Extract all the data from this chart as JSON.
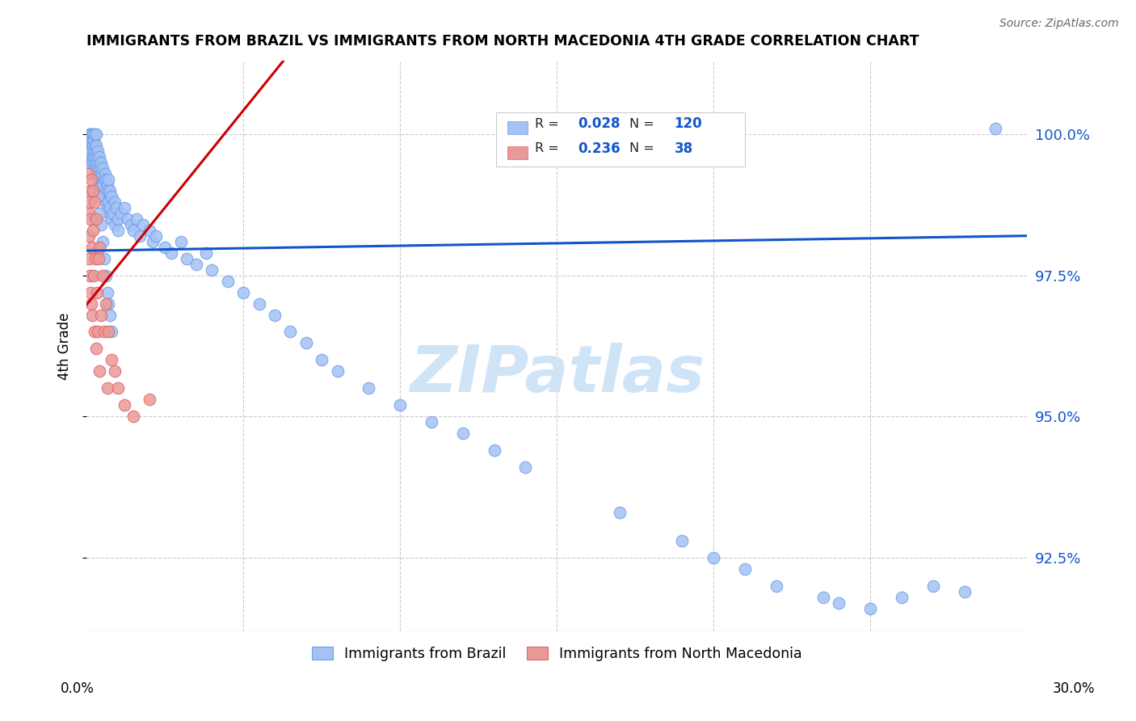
{
  "title": "IMMIGRANTS FROM BRAZIL VS IMMIGRANTS FROM NORTH MACEDONIA 4TH GRADE CORRELATION CHART",
  "source": "Source: ZipAtlas.com",
  "ylabel": "4th Grade",
  "ytick_labels": [
    "92.5%",
    "95.0%",
    "97.5%",
    "100.0%"
  ],
  "ytick_values": [
    92.5,
    95.0,
    97.5,
    100.0
  ],
  "xlim": [
    0.0,
    30.0
  ],
  "ylim": [
    91.2,
    101.3
  ],
  "brazil_R": 0.028,
  "brazil_N": 120,
  "macedonia_R": 0.236,
  "macedonia_N": 38,
  "brazil_color": "#a4c2f4",
  "brazil_edge_color": "#6d9eeb",
  "macedonia_color": "#ea9999",
  "macedonia_edge_color": "#e06666",
  "brazil_line_color": "#1155cc",
  "macedonia_line_color": "#cc0000",
  "watermark_color": "#d0e4f7",
  "brazil_x": [
    0.05,
    0.07,
    0.08,
    0.09,
    0.1,
    0.1,
    0.12,
    0.13,
    0.14,
    0.15,
    0.15,
    0.17,
    0.18,
    0.19,
    0.2,
    0.2,
    0.2,
    0.22,
    0.23,
    0.24,
    0.25,
    0.25,
    0.27,
    0.28,
    0.29,
    0.3,
    0.3,
    0.3,
    0.32,
    0.33,
    0.35,
    0.35,
    0.37,
    0.38,
    0.4,
    0.4,
    0.42,
    0.43,
    0.45,
    0.45,
    0.48,
    0.5,
    0.5,
    0.52,
    0.55,
    0.55,
    0.58,
    0.6,
    0.6,
    0.62,
    0.65,
    0.65,
    0.68,
    0.7,
    0.7,
    0.72,
    0.75,
    0.75,
    0.8,
    0.8,
    0.85,
    0.9,
    0.9,
    0.95,
    1.0,
    1.0,
    1.1,
    1.2,
    1.3,
    1.4,
    1.5,
    1.6,
    1.7,
    1.8,
    2.0,
    2.1,
    2.2,
    2.5,
    2.7,
    3.0,
    3.2,
    3.5,
    3.8,
    4.0,
    4.5,
    5.0,
    5.5,
    6.0,
    6.5,
    7.0,
    7.5,
    8.0,
    9.0,
    10.0,
    11.0,
    12.0,
    13.0,
    14.0,
    17.0,
    19.0,
    20.0,
    21.0,
    22.0,
    23.5,
    24.0,
    25.0,
    26.0,
    27.0,
    28.0,
    29.0,
    0.35,
    0.4,
    0.45,
    0.5,
    0.55,
    0.6,
    0.65,
    0.7,
    0.75,
    0.8
  ],
  "brazil_y": [
    99.6,
    99.8,
    99.5,
    99.7,
    100.0,
    99.9,
    100.0,
    99.8,
    99.6,
    100.0,
    99.7,
    99.9,
    99.5,
    99.8,
    100.0,
    99.8,
    99.6,
    99.9,
    99.7,
    99.5,
    100.0,
    99.6,
    99.8,
    99.4,
    99.7,
    100.0,
    99.8,
    99.5,
    99.6,
    99.3,
    99.7,
    99.4,
    99.5,
    99.2,
    99.6,
    99.3,
    99.4,
    99.1,
    99.5,
    99.2,
    99.3,
    99.0,
    99.4,
    99.1,
    99.2,
    98.9,
    99.3,
    99.0,
    99.2,
    98.8,
    99.1,
    98.7,
    99.0,
    98.8,
    99.2,
    98.6,
    99.0,
    98.7,
    98.5,
    98.9,
    98.6,
    98.8,
    98.4,
    98.7,
    98.5,
    98.3,
    98.6,
    98.7,
    98.5,
    98.4,
    98.3,
    98.5,
    98.2,
    98.4,
    98.3,
    98.1,
    98.2,
    98.0,
    97.9,
    98.1,
    97.8,
    97.7,
    97.9,
    97.6,
    97.4,
    97.2,
    97.0,
    96.8,
    96.5,
    96.3,
    96.0,
    95.8,
    95.5,
    95.2,
    94.9,
    94.7,
    94.4,
    94.1,
    93.3,
    92.8,
    92.5,
    92.3,
    92.0,
    91.8,
    91.7,
    91.6,
    91.8,
    92.0,
    91.9,
    100.1,
    98.9,
    98.6,
    98.4,
    98.1,
    97.8,
    97.5,
    97.2,
    97.0,
    96.8,
    96.5
  ],
  "macedonia_x": [
    0.04,
    0.06,
    0.07,
    0.08,
    0.09,
    0.1,
    0.1,
    0.12,
    0.13,
    0.15,
    0.15,
    0.17,
    0.18,
    0.2,
    0.2,
    0.22,
    0.25,
    0.25,
    0.28,
    0.3,
    0.3,
    0.32,
    0.35,
    0.38,
    0.4,
    0.4,
    0.45,
    0.5,
    0.55,
    0.6,
    0.65,
    0.7,
    0.8,
    0.9,
    1.0,
    1.2,
    1.5,
    2.0
  ],
  "macedonia_y": [
    99.3,
    98.6,
    97.8,
    98.2,
    99.0,
    98.8,
    97.5,
    98.5,
    97.2,
    99.2,
    97.0,
    98.0,
    96.8,
    99.0,
    98.3,
    97.5,
    98.8,
    96.5,
    97.8,
    98.5,
    96.2,
    97.2,
    96.5,
    97.8,
    98.0,
    95.8,
    96.8,
    97.5,
    96.5,
    97.0,
    95.5,
    96.5,
    96.0,
    95.8,
    95.5,
    95.2,
    95.0,
    95.3
  ]
}
